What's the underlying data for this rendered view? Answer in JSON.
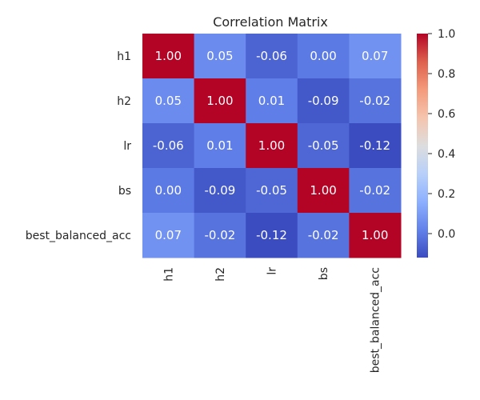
{
  "chart_data": {
    "type": "heatmap",
    "title": "Correlation Matrix",
    "rows": [
      "h1",
      "h2",
      "lr",
      "bs",
      "best_balanced_acc"
    ],
    "columns": [
      "h1",
      "h2",
      "lr",
      "bs",
      "best_balanced_acc"
    ],
    "values": [
      [
        1.0,
        0.05,
        -0.06,
        -0.0,
        0.07
      ],
      [
        0.05,
        1.0,
        0.01,
        -0.09,
        -0.02
      ],
      [
        -0.06,
        0.01,
        1.0,
        -0.05,
        -0.12
      ],
      [
        -0.0,
        -0.09,
        -0.05,
        1.0,
        -0.02
      ],
      [
        0.07,
        -0.02,
        -0.12,
        -0.02,
        1.0
      ]
    ],
    "colormap": "coolwarm",
    "colorbar": {
      "range": [
        -0.12,
        1.0
      ],
      "ticks": [
        "0.0",
        "0.2",
        "0.4",
        "0.6",
        "0.8",
        "1.0"
      ],
      "tick_values": [
        0.0,
        0.2,
        0.4,
        0.6,
        0.8,
        1.0
      ]
    },
    "annotation_format": "0.00",
    "grid": false
  }
}
